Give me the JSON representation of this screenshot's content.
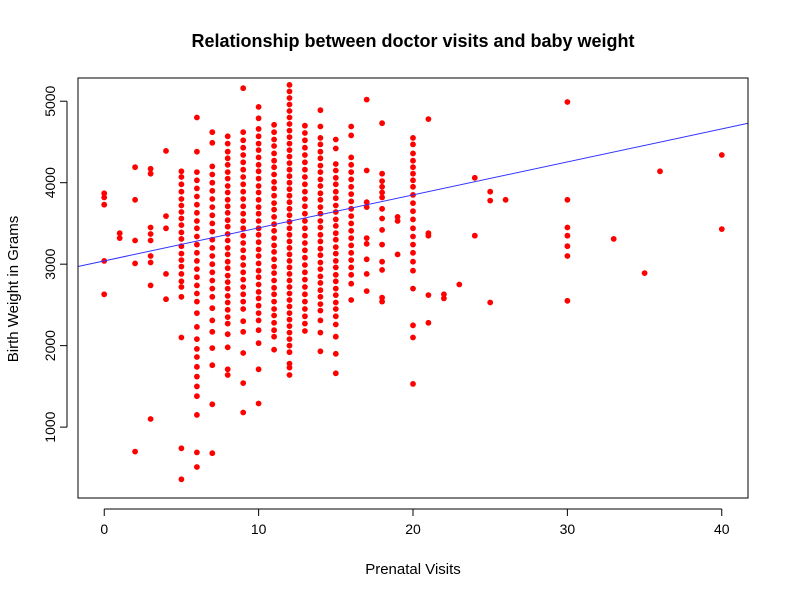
{
  "chart_data": {
    "type": "scatter",
    "title": "Relationship between doctor visits and baby weight",
    "xlabel": "Prenatal Visits",
    "ylabel": "Birth Weight in Grams",
    "xlim": [
      -1.7,
      41.7
    ],
    "ylim": [
      130,
      5285
    ],
    "x_ticks": [
      0,
      10,
      20,
      30,
      40
    ],
    "y_ticks": [
      1000,
      2000,
      3000,
      4000,
      5000
    ],
    "grid": false,
    "legend": "none",
    "colors": {
      "points": "#ff0000",
      "line": "#3333ff",
      "axes": "#000000"
    },
    "regression_line": {
      "intercept": 3040,
      "slope": 40.5
    },
    "points": [
      [
        0,
        3870
      ],
      [
        0,
        3820
      ],
      [
        0,
        3730
      ],
      [
        0,
        3040
      ],
      [
        0,
        2630
      ],
      [
        1,
        3380
      ],
      [
        1,
        3320
      ],
      [
        2,
        4190
      ],
      [
        2,
        3790
      ],
      [
        2,
        3290
      ],
      [
        2,
        3010
      ],
      [
        2,
        700
      ],
      [
        3,
        4170
      ],
      [
        3,
        4110
      ],
      [
        3,
        3450
      ],
      [
        3,
        3370
      ],
      [
        3,
        3290
      ],
      [
        3,
        3100
      ],
      [
        3,
        3020
      ],
      [
        3,
        2740
      ],
      [
        3,
        1100
      ],
      [
        4,
        4390
      ],
      [
        4,
        3590
      ],
      [
        4,
        3440
      ],
      [
        4,
        2880
      ],
      [
        4,
        2570
      ],
      [
        5,
        4140
      ],
      [
        5,
        4070
      ],
      [
        5,
        3980
      ],
      [
        5,
        3890
      ],
      [
        5,
        3800
      ],
      [
        5,
        3720
      ],
      [
        5,
        3640
      ],
      [
        5,
        3560
      ],
      [
        5,
        3480
      ],
      [
        5,
        3390
      ],
      [
        5,
        3310
      ],
      [
        5,
        3220
      ],
      [
        5,
        3130
      ],
      [
        5,
        3050
      ],
      [
        5,
        2970
      ],
      [
        5,
        2880
      ],
      [
        5,
        2790
      ],
      [
        5,
        2720
      ],
      [
        5,
        2600
      ],
      [
        5,
        2100
      ],
      [
        5,
        740
      ],
      [
        5,
        360
      ],
      [
        6,
        4800
      ],
      [
        6,
        4380
      ],
      [
        6,
        4130
      ],
      [
        6,
        4030
      ],
      [
        6,
        3930
      ],
      [
        6,
        3830
      ],
      [
        6,
        3730
      ],
      [
        6,
        3630
      ],
      [
        6,
        3530
      ],
      [
        6,
        3440
      ],
      [
        6,
        3340
      ],
      [
        6,
        3240
      ],
      [
        6,
        3140
      ],
      [
        6,
        3040
      ],
      [
        6,
        2940
      ],
      [
        6,
        2840
      ],
      [
        6,
        2740
      ],
      [
        6,
        2640
      ],
      [
        6,
        2540
      ],
      [
        6,
        2400
      ],
      [
        6,
        2230
      ],
      [
        6,
        2080
      ],
      [
        6,
        1960
      ],
      [
        6,
        1860
      ],
      [
        6,
        1740
      ],
      [
        6,
        1620
      ],
      [
        6,
        1500
      ],
      [
        6,
        1380
      ],
      [
        6,
        1150
      ],
      [
        6,
        690
      ],
      [
        6,
        510
      ],
      [
        7,
        4620
      ],
      [
        7,
        4490
      ],
      [
        7,
        4200
      ],
      [
        7,
        4100
      ],
      [
        7,
        4000
      ],
      [
        7,
        3900
      ],
      [
        7,
        3800
      ],
      [
        7,
        3700
      ],
      [
        7,
        3600
      ],
      [
        7,
        3500
      ],
      [
        7,
        3400
      ],
      [
        7,
        3300
      ],
      [
        7,
        3200
      ],
      [
        7,
        3100
      ],
      [
        7,
        3000
      ],
      [
        7,
        2900
      ],
      [
        7,
        2800
      ],
      [
        7,
        2700
      ],
      [
        7,
        2600
      ],
      [
        7,
        2460
      ],
      [
        7,
        2310
      ],
      [
        7,
        2170
      ],
      [
        7,
        1970
      ],
      [
        7,
        1760
      ],
      [
        7,
        1280
      ],
      [
        7,
        680
      ],
      [
        8,
        4570
      ],
      [
        8,
        4480
      ],
      [
        8,
        4380
      ],
      [
        8,
        4300
      ],
      [
        8,
        4220
      ],
      [
        8,
        4130
      ],
      [
        8,
        4050
      ],
      [
        8,
        3960
      ],
      [
        8,
        3880
      ],
      [
        8,
        3790
      ],
      [
        8,
        3710
      ],
      [
        8,
        3630
      ],
      [
        8,
        3540
      ],
      [
        8,
        3460
      ],
      [
        8,
        3370
      ],
      [
        8,
        3290
      ],
      [
        8,
        3200
      ],
      [
        8,
        3120
      ],
      [
        8,
        3030
      ],
      [
        8,
        2950
      ],
      [
        8,
        2860
      ],
      [
        8,
        2780
      ],
      [
        8,
        2700
      ],
      [
        8,
        2610
      ],
      [
        8,
        2530
      ],
      [
        8,
        2440
      ],
      [
        8,
        2350
      ],
      [
        8,
        2270
      ],
      [
        8,
        2140
      ],
      [
        8,
        1980
      ],
      [
        8,
        1710
      ],
      [
        8,
        1640
      ],
      [
        9,
        5160
      ],
      [
        9,
        4620
      ],
      [
        9,
        4520
      ],
      [
        9,
        4430
      ],
      [
        9,
        4340
      ],
      [
        9,
        4250
      ],
      [
        9,
        4160
      ],
      [
        9,
        4070
      ],
      [
        9,
        3980
      ],
      [
        9,
        3890
      ],
      [
        9,
        3800
      ],
      [
        9,
        3710
      ],
      [
        9,
        3620
      ],
      [
        9,
        3530
      ],
      [
        9,
        3440
      ],
      [
        9,
        3350
      ],
      [
        9,
        3260
      ],
      [
        9,
        3170
      ],
      [
        9,
        3080
      ],
      [
        9,
        2990
      ],
      [
        9,
        2900
      ],
      [
        9,
        2810
      ],
      [
        9,
        2720
      ],
      [
        9,
        2630
      ],
      [
        9,
        2540
      ],
      [
        9,
        2450
      ],
      [
        9,
        2300
      ],
      [
        9,
        2170
      ],
      [
        9,
        1910
      ],
      [
        9,
        1540
      ],
      [
        9,
        1180
      ],
      [
        10,
        4930
      ],
      [
        10,
        4790
      ],
      [
        10,
        4660
      ],
      [
        10,
        4570
      ],
      [
        10,
        4480
      ],
      [
        10,
        4400
      ],
      [
        10,
        4310
      ],
      [
        10,
        4220
      ],
      [
        10,
        4140
      ],
      [
        10,
        4050
      ],
      [
        10,
        3960
      ],
      [
        10,
        3880
      ],
      [
        10,
        3790
      ],
      [
        10,
        3700
      ],
      [
        10,
        3620
      ],
      [
        10,
        3530
      ],
      [
        10,
        3440
      ],
      [
        10,
        3360
      ],
      [
        10,
        3270
      ],
      [
        10,
        3180
      ],
      [
        10,
        3100
      ],
      [
        10,
        3010
      ],
      [
        10,
        2920
      ],
      [
        10,
        2840
      ],
      [
        10,
        2750
      ],
      [
        10,
        2660
      ],
      [
        10,
        2580
      ],
      [
        10,
        2490
      ],
      [
        10,
        2400
      ],
      [
        10,
        2310
      ],
      [
        10,
        2190
      ],
      [
        10,
        2030
      ],
      [
        10,
        1710
      ],
      [
        10,
        1290
      ],
      [
        11,
        4710
      ],
      [
        11,
        4620
      ],
      [
        11,
        4530
      ],
      [
        11,
        4450
      ],
      [
        11,
        4360
      ],
      [
        11,
        4270
      ],
      [
        11,
        4190
      ],
      [
        11,
        4100
      ],
      [
        11,
        4010
      ],
      [
        11,
        3930
      ],
      [
        11,
        3840
      ],
      [
        11,
        3750
      ],
      [
        11,
        3670
      ],
      [
        11,
        3580
      ],
      [
        11,
        3490
      ],
      [
        11,
        3410
      ],
      [
        11,
        3320
      ],
      [
        11,
        3230
      ],
      [
        11,
        3150
      ],
      [
        11,
        3060
      ],
      [
        11,
        2970
      ],
      [
        11,
        2890
      ],
      [
        11,
        2800
      ],
      [
        11,
        2710
      ],
      [
        11,
        2630
      ],
      [
        11,
        2540
      ],
      [
        11,
        2450
      ],
      [
        11,
        2370
      ],
      [
        11,
        2280
      ],
      [
        11,
        2190
      ],
      [
        11,
        2110
      ],
      [
        11,
        1950
      ],
      [
        12,
        5200
      ],
      [
        12,
        5120
      ],
      [
        12,
        5040
      ],
      [
        12,
        4960
      ],
      [
        12,
        4880
      ],
      [
        12,
        4800
      ],
      [
        12,
        4720
      ],
      [
        12,
        4640
      ],
      [
        12,
        4560
      ],
      [
        12,
        4480
      ],
      [
        12,
        4400
      ],
      [
        12,
        4320
      ],
      [
        12,
        4240
      ],
      [
        12,
        4160
      ],
      [
        12,
        4080
      ],
      [
        12,
        4000
      ],
      [
        12,
        3920
      ],
      [
        12,
        3840
      ],
      [
        12,
        3760
      ],
      [
        12,
        3680
      ],
      [
        12,
        3600
      ],
      [
        12,
        3520
      ],
      [
        12,
        3440
      ],
      [
        12,
        3360
      ],
      [
        12,
        3280
      ],
      [
        12,
        3200
      ],
      [
        12,
        3120
      ],
      [
        12,
        3040
      ],
      [
        12,
        2960
      ],
      [
        12,
        2880
      ],
      [
        12,
        2800
      ],
      [
        12,
        2720
      ],
      [
        12,
        2640
      ],
      [
        12,
        2560
      ],
      [
        12,
        2480
      ],
      [
        12,
        2400
      ],
      [
        12,
        2320
      ],
      [
        12,
        2240
      ],
      [
        12,
        2160
      ],
      [
        12,
        2080
      ],
      [
        12,
        2000
      ],
      [
        12,
        1920
      ],
      [
        12,
        1780
      ],
      [
        12,
        1730
      ],
      [
        12,
        1640
      ],
      [
        13,
        4700
      ],
      [
        13,
        4610
      ],
      [
        13,
        4520
      ],
      [
        13,
        4430
      ],
      [
        13,
        4340
      ],
      [
        13,
        4250
      ],
      [
        13,
        4160
      ],
      [
        13,
        4070
      ],
      [
        13,
        3980
      ],
      [
        13,
        3890
      ],
      [
        13,
        3800
      ],
      [
        13,
        3710
      ],
      [
        13,
        3620
      ],
      [
        13,
        3530
      ],
      [
        13,
        3440
      ],
      [
        13,
        3350
      ],
      [
        13,
        3260
      ],
      [
        13,
        3170
      ],
      [
        13,
        3080
      ],
      [
        13,
        2990
      ],
      [
        13,
        2900
      ],
      [
        13,
        2810
      ],
      [
        13,
        2720
      ],
      [
        13,
        2630
      ],
      [
        13,
        2540
      ],
      [
        13,
        2450
      ],
      [
        13,
        2360
      ],
      [
        13,
        2270
      ],
      [
        13,
        2180
      ],
      [
        14,
        4890
      ],
      [
        14,
        4690
      ],
      [
        14,
        4550
      ],
      [
        14,
        4470
      ],
      [
        14,
        4380
      ],
      [
        14,
        4300
      ],
      [
        14,
        4210
      ],
      [
        14,
        4130
      ],
      [
        14,
        4040
      ],
      [
        14,
        3960
      ],
      [
        14,
        3870
      ],
      [
        14,
        3790
      ],
      [
        14,
        3700
      ],
      [
        14,
        3620
      ],
      [
        14,
        3530
      ],
      [
        14,
        3450
      ],
      [
        14,
        3360
      ],
      [
        14,
        3280
      ],
      [
        14,
        3190
      ],
      [
        14,
        3110
      ],
      [
        14,
        3020
      ],
      [
        14,
        2940
      ],
      [
        14,
        2850
      ],
      [
        14,
        2770
      ],
      [
        14,
        2680
      ],
      [
        14,
        2600
      ],
      [
        14,
        2510
      ],
      [
        14,
        2430
      ],
      [
        14,
        2310
      ],
      [
        14,
        2160
      ],
      [
        14,
        1930
      ],
      [
        15,
        4530
      ],
      [
        15,
        4420
      ],
      [
        15,
        4230
      ],
      [
        15,
        4150
      ],
      [
        15,
        4060
      ],
      [
        15,
        3980
      ],
      [
        15,
        3890
      ],
      [
        15,
        3810
      ],
      [
        15,
        3720
      ],
      [
        15,
        3640
      ],
      [
        15,
        3550
      ],
      [
        15,
        3470
      ],
      [
        15,
        3380
      ],
      [
        15,
        3300
      ],
      [
        15,
        3210
      ],
      [
        15,
        3130
      ],
      [
        15,
        3040
      ],
      [
        15,
        2960
      ],
      [
        15,
        2870
      ],
      [
        15,
        2790
      ],
      [
        15,
        2700
      ],
      [
        15,
        2620
      ],
      [
        15,
        2530
      ],
      [
        15,
        2450
      ],
      [
        15,
        2360
      ],
      [
        15,
        2260
      ],
      [
        15,
        2110
      ],
      [
        15,
        1900
      ],
      [
        15,
        1660
      ],
      [
        16,
        4690
      ],
      [
        16,
        4580
      ],
      [
        16,
        4310
      ],
      [
        16,
        4220
      ],
      [
        16,
        4130
      ],
      [
        16,
        4040
      ],
      [
        16,
        3950
      ],
      [
        16,
        3860
      ],
      [
        16,
        3770
      ],
      [
        16,
        3680
      ],
      [
        16,
        3590
      ],
      [
        16,
        3500
      ],
      [
        16,
        3410
      ],
      [
        16,
        3320
      ],
      [
        16,
        3230
      ],
      [
        16,
        3140
      ],
      [
        16,
        3050
      ],
      [
        16,
        2960
      ],
      [
        16,
        2870
      ],
      [
        16,
        2760
      ],
      [
        16,
        2560
      ],
      [
        17,
        5020
      ],
      [
        17,
        4150
      ],
      [
        17,
        3760
      ],
      [
        17,
        3700
      ],
      [
        17,
        3320
      ],
      [
        17,
        3250
      ],
      [
        17,
        3060
      ],
      [
        17,
        2880
      ],
      [
        17,
        2670
      ],
      [
        18,
        4730
      ],
      [
        18,
        4110
      ],
      [
        18,
        4020
      ],
      [
        18,
        3950
      ],
      [
        18,
        3880
      ],
      [
        18,
        3820
      ],
      [
        18,
        3680
      ],
      [
        18,
        3560
      ],
      [
        18,
        3420
      ],
      [
        18,
        3240
      ],
      [
        18,
        3030
      ],
      [
        18,
        2930
      ],
      [
        18,
        2590
      ],
      [
        18,
        2540
      ],
      [
        19,
        3580
      ],
      [
        19,
        3530
      ],
      [
        19,
        3120
      ],
      [
        20,
        4550
      ],
      [
        20,
        4470
      ],
      [
        20,
        4360
      ],
      [
        20,
        4270
      ],
      [
        20,
        4190
      ],
      [
        20,
        4110
      ],
      [
        20,
        4030
      ],
      [
        20,
        3950
      ],
      [
        20,
        3850
      ],
      [
        20,
        3750
      ],
      [
        20,
        3650
      ],
      [
        20,
        3550
      ],
      [
        20,
        3440
      ],
      [
        20,
        3340
      ],
      [
        20,
        3240
      ],
      [
        20,
        3140
      ],
      [
        20,
        3030
      ],
      [
        20,
        2920
      ],
      [
        20,
        2700
      ],
      [
        20,
        2250
      ],
      [
        20,
        2100
      ],
      [
        20,
        1530
      ],
      [
        21,
        4780
      ],
      [
        21,
        3380
      ],
      [
        21,
        3350
      ],
      [
        21,
        2620
      ],
      [
        21,
        2280
      ],
      [
        22,
        2630
      ],
      [
        22,
        2580
      ],
      [
        23,
        2750
      ],
      [
        24,
        4060
      ],
      [
        24,
        3350
      ],
      [
        25,
        3890
      ],
      [
        25,
        3780
      ],
      [
        25,
        2530
      ],
      [
        26,
        3790
      ],
      [
        30,
        4990
      ],
      [
        30,
        3790
      ],
      [
        30,
        3450
      ],
      [
        30,
        3350
      ],
      [
        30,
        3220
      ],
      [
        30,
        3100
      ],
      [
        30,
        2550
      ],
      [
        33,
        3310
      ],
      [
        35,
        2890
      ],
      [
        36,
        4140
      ],
      [
        40,
        4340
      ],
      [
        40,
        3430
      ]
    ]
  }
}
